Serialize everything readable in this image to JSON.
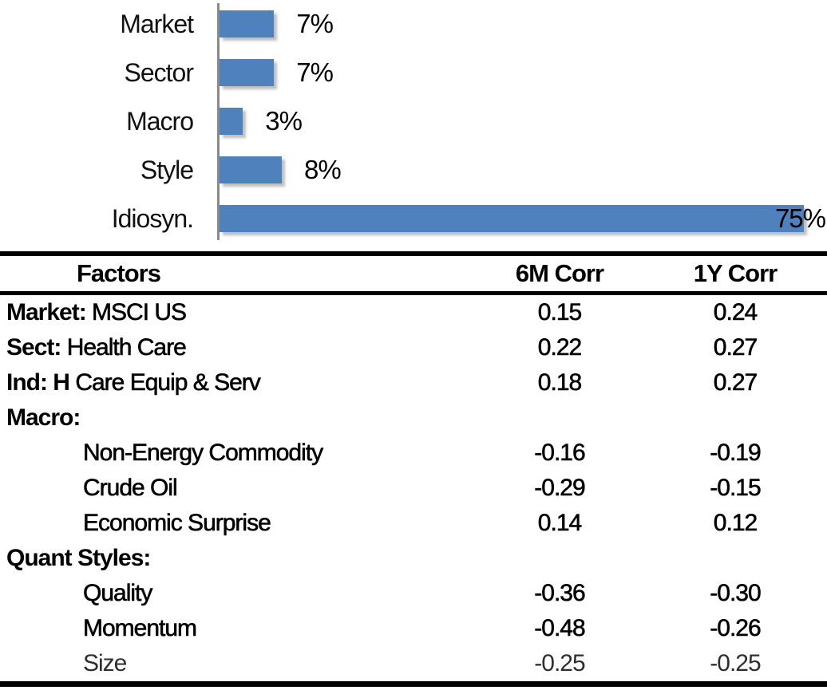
{
  "chart_data": [
    {
      "type": "bar",
      "orientation": "horizontal",
      "title": "",
      "categories": [
        "Market",
        "Sector",
        "Macro",
        "Style",
        "Idiosyn."
      ],
      "values": [
        7,
        7,
        3,
        8,
        75
      ],
      "value_labels": [
        "7%",
        "7%",
        "3%",
        "8%",
        "75%"
      ],
      "xlabel": "",
      "ylabel": "",
      "xlim": [
        0,
        78
      ],
      "grid": false,
      "legend": false,
      "bar_color": "#4F81BD",
      "axis_color": "#8a8a8a"
    },
    {
      "type": "table",
      "columns": [
        "Factors",
        "6M Corr",
        "1Y Corr"
      ],
      "rows": [
        {
          "prefix": "Market:",
          "rest": "MSCI US",
          "c6m": "0.15",
          "c1y": "0.24"
        },
        {
          "prefix": "Sect:",
          "rest": "Health Care",
          "c6m": "0.22",
          "c1y": "0.27"
        },
        {
          "prefix": "Ind: H",
          "rest": "Care Equip & Serv",
          "c6m": "0.18",
          "c1y": "0.27"
        },
        {
          "prefix": "Macro:",
          "rest": "",
          "c6m": "",
          "c1y": ""
        },
        {
          "prefix": "",
          "rest": "Non-Energy Commodity",
          "c6m": "-0.16",
          "c1y": "-0.19"
        },
        {
          "prefix": "",
          "rest": "Crude Oil",
          "c6m": "-0.29",
          "c1y": "-0.15"
        },
        {
          "prefix": "",
          "rest": "Economic Surprise",
          "c6m": "0.14",
          "c1y": "0.12"
        },
        {
          "prefix": "Quant Styles:",
          "rest": "",
          "c6m": "",
          "c1y": ""
        },
        {
          "prefix": "",
          "rest": "Quality",
          "c6m": "-0.36",
          "c1y": "-0.30"
        },
        {
          "prefix": "",
          "rest": "Momentum",
          "c6m": "-0.48",
          "c1y": "-0.26"
        },
        {
          "prefix": "",
          "rest": "Size",
          "c6m": "-0.25",
          "c1y": "-0.25"
        }
      ]
    }
  ]
}
